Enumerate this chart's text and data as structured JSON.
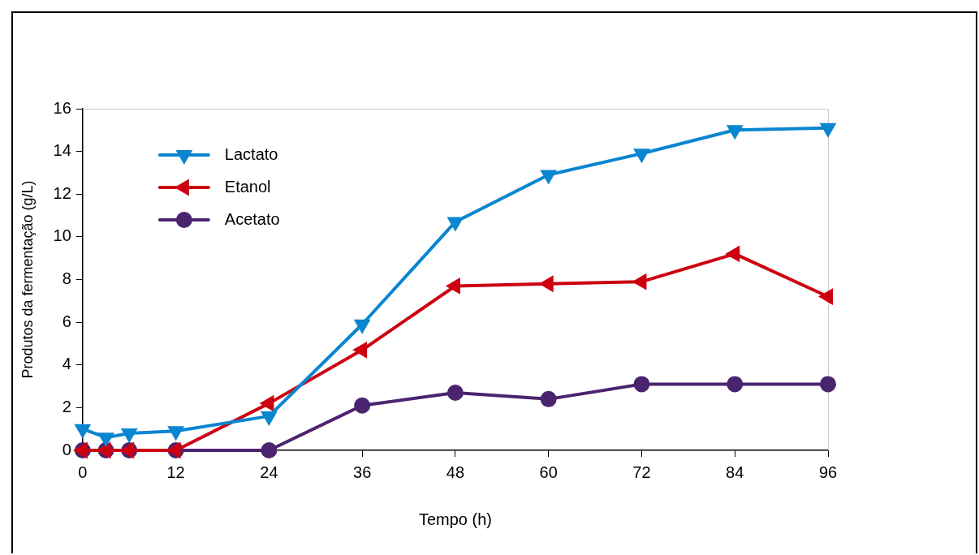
{
  "chart_data": {
    "type": "line",
    "xlabel": "Tempo (h)",
    "ylabel": "Produtos da fermentação (g/L)",
    "xlim": [
      0,
      96
    ],
    "xticks": [
      0,
      12,
      24,
      36,
      48,
      60,
      72,
      84,
      96
    ],
    "ylim": [
      0,
      16
    ],
    "yticks": [
      0,
      2,
      4,
      6,
      8,
      10,
      12,
      14,
      16
    ],
    "grid": false,
    "legend": "top left",
    "line_style": "solid",
    "series": [
      {
        "name": "Lactato",
        "color": "#0a85d0",
        "marker": "triangle-down",
        "x": [
          0,
          3,
          6,
          12,
          24,
          36,
          48,
          60,
          72,
          84,
          96
        ],
        "values": [
          1.0,
          0.6,
          0.8,
          0.9,
          1.6,
          5.9,
          10.7,
          12.9,
          13.9,
          15.0,
          15.1
        ]
      },
      {
        "name": "Etanol",
        "color": "#cc0010",
        "marker": "triangle-left",
        "x": [
          0,
          3,
          6,
          12,
          24,
          36,
          48,
          60,
          72,
          84,
          96
        ],
        "values": [
          0,
          0,
          0,
          0,
          2.2,
          4.7,
          7.7,
          7.8,
          7.9,
          9.2,
          7.2
        ]
      },
      {
        "name": "Acetato",
        "color": "#4b2470",
        "marker": "circle",
        "x": [
          0,
          3,
          6,
          12,
          24,
          36,
          48,
          60,
          72,
          84,
          96
        ],
        "values": [
          0,
          0,
          0,
          0,
          0,
          2.1,
          2.7,
          2.4,
          3.1,
          3.1,
          3.1
        ]
      }
    ]
  }
}
